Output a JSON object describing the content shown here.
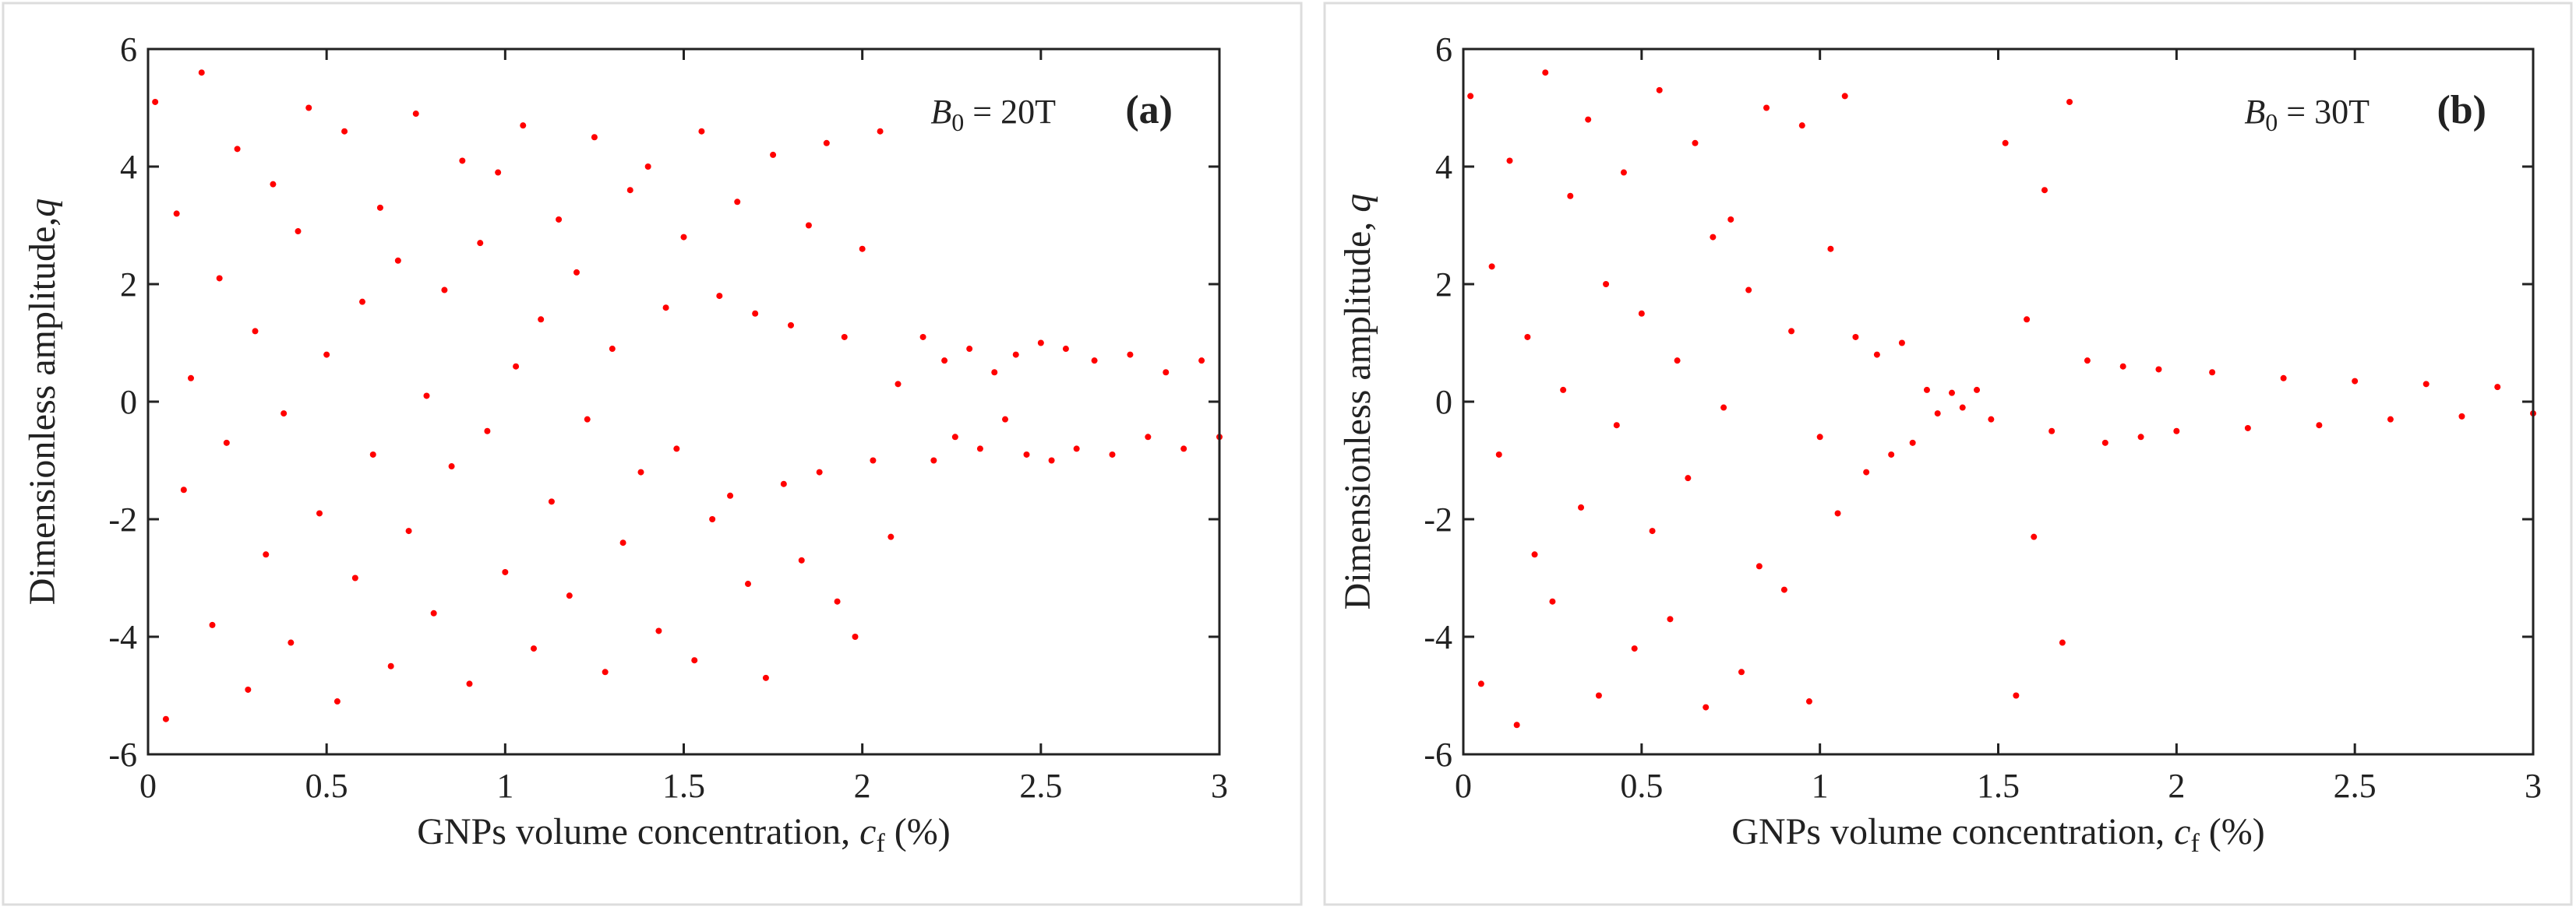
{
  "chart_data": [
    {
      "type": "scatter",
      "color": "#ff0000",
      "xlabel": [
        "GNPs volume concentration, ",
        "c",
        "f",
        " (%)"
      ],
      "ylabel": [
        "Dimensionless amplitude,",
        "q"
      ],
      "annotation": [
        "B",
        "0",
        " = 20T"
      ],
      "panel_label": "(a)",
      "xlim": [
        0,
        3
      ],
      "ylim": [
        -6,
        6
      ],
      "xticks": [
        0,
        0.5,
        1,
        1.5,
        2,
        2.5,
        3
      ],
      "yticks": [
        -6,
        -4,
        -2,
        0,
        2,
        4,
        6
      ],
      "x": [
        0.02,
        0.05,
        0.08,
        0.1,
        0.12,
        0.15,
        0.18,
        0.2,
        0.22,
        0.25,
        0.28,
        0.3,
        0.33,
        0.35,
        0.38,
        0.4,
        0.42,
        0.45,
        0.48,
        0.5,
        0.53,
        0.55,
        0.58,
        0.6,
        0.63,
        0.65,
        0.68,
        0.7,
        0.73,
        0.75,
        0.78,
        0.8,
        0.83,
        0.85,
        0.88,
        0.9,
        0.93,
        0.95,
        0.98,
        1.0,
        1.03,
        1.05,
        1.08,
        1.1,
        1.13,
        1.15,
        1.18,
        1.2,
        1.23,
        1.25,
        1.28,
        1.3,
        1.33,
        1.35,
        1.38,
        1.4,
        1.43,
        1.45,
        1.48,
        1.5,
        1.53,
        1.55,
        1.58,
        1.6,
        1.63,
        1.65,
        1.68,
        1.7,
        1.73,
        1.75,
        1.78,
        1.8,
        1.83,
        1.85,
        1.88,
        1.9,
        1.93,
        1.95,
        1.98,
        2.0,
        2.03,
        2.05,
        2.08,
        2.1,
        2.17,
        2.2,
        2.23,
        2.26,
        2.3,
        2.33,
        2.37,
        2.4,
        2.43,
        2.46,
        2.5,
        2.53,
        2.57,
        2.6,
        2.65,
        2.7,
        2.75,
        2.8,
        2.85,
        2.9,
        2.95,
        3.0
      ],
      "values": [
        5.1,
        -5.4,
        3.2,
        -1.5,
        0.4,
        5.6,
        -3.8,
        2.1,
        -0.7,
        4.3,
        -4.9,
        1.2,
        -2.6,
        3.7,
        -0.2,
        -4.1,
        2.9,
        5.0,
        -1.9,
        0.8,
        -5.1,
        4.6,
        -3.0,
        1.7,
        -0.9,
        3.3,
        -4.5,
        2.4,
        -2.2,
        4.9,
        0.1,
        -3.6,
        1.9,
        -1.1,
        4.1,
        -4.8,
        2.7,
        -0.5,
        3.9,
        -2.9,
        0.6,
        4.7,
        -4.2,
        1.4,
        -1.7,
        3.1,
        -3.3,
        2.2,
        -0.3,
        4.5,
        -4.6,
        0.9,
        -2.4,
        3.6,
        -1.2,
        4.0,
        -3.9,
        1.6,
        -0.8,
        2.8,
        -4.4,
        4.6,
        -2.0,
        1.8,
        -1.6,
        3.4,
        -3.1,
        1.5,
        -4.7,
        4.2,
        -1.4,
        1.3,
        -2.7,
        3.0,
        -1.2,
        4.4,
        -3.4,
        1.1,
        -4.0,
        2.6,
        -1.0,
        4.6,
        -2.3,
        0.3,
        1.1,
        -1.0,
        0.7,
        -0.6,
        0.9,
        -0.8,
        0.5,
        -0.3,
        0.8,
        -0.9,
        1.0,
        -1.0,
        0.9,
        -0.8,
        0.7,
        -0.9,
        0.8,
        -0.6,
        0.5,
        -0.8,
        0.7,
        -0.6
      ]
    },
    {
      "type": "scatter",
      "color": "#ff0000",
      "xlabel": [
        "GNPs volume concentration, ",
        "c",
        "f",
        " (%)"
      ],
      "ylabel": [
        "Dimensionless amplitude, ",
        "q"
      ],
      "annotation": [
        "B",
        "0",
        " = 30T"
      ],
      "panel_label": "(b)",
      "xlim": [
        0,
        3
      ],
      "ylim": [
        -6,
        6
      ],
      "xticks": [
        0,
        0.5,
        1,
        1.5,
        2,
        2.5,
        3
      ],
      "yticks": [
        -6,
        -4,
        -2,
        0,
        2,
        4,
        6
      ],
      "x": [
        0.02,
        0.05,
        0.08,
        0.1,
        0.13,
        0.15,
        0.18,
        0.2,
        0.23,
        0.25,
        0.28,
        0.3,
        0.33,
        0.35,
        0.38,
        0.4,
        0.43,
        0.45,
        0.48,
        0.5,
        0.53,
        0.55,
        0.58,
        0.6,
        0.63,
        0.65,
        0.68,
        0.7,
        0.73,
        0.75,
        0.78,
        0.8,
        0.83,
        0.85,
        0.9,
        0.92,
        0.95,
        0.97,
        1.0,
        1.03,
        1.05,
        1.07,
        1.1,
        1.13,
        1.16,
        1.2,
        1.23,
        1.26,
        1.3,
        1.33,
        1.37,
        1.4,
        1.44,
        1.48,
        1.52,
        1.55,
        1.58,
        1.6,
        1.63,
        1.65,
        1.68,
        1.7,
        1.75,
        1.8,
        1.85,
        1.9,
        1.95,
        2.0,
        2.1,
        2.2,
        2.3,
        2.4,
        2.5,
        2.6,
        2.7,
        2.8,
        2.9,
        3.0
      ],
      "values": [
        5.2,
        -4.8,
        2.3,
        -0.9,
        4.1,
        -5.5,
        1.1,
        -2.6,
        5.6,
        -3.4,
        0.2,
        3.5,
        -1.8,
        4.8,
        -5.0,
        2.0,
        -0.4,
        3.9,
        -4.2,
        1.5,
        -2.2,
        5.3,
        -3.7,
        0.7,
        -1.3,
        4.4,
        -5.2,
        2.8,
        -0.1,
        3.1,
        -4.6,
        1.9,
        -2.8,
        5.0,
        -3.2,
        1.2,
        4.7,
        -5.1,
        -0.6,
        2.6,
        -1.9,
        5.2,
        1.1,
        -1.2,
        0.8,
        -0.9,
        1.0,
        -0.7,
        0.2,
        -0.2,
        0.15,
        -0.1,
        0.2,
        -0.3,
        4.4,
        -5.0,
        1.4,
        -2.3,
        3.6,
        -0.5,
        -4.1,
        5.1,
        0.7,
        -0.7,
        0.6,
        -0.6,
        0.55,
        -0.5,
        0.5,
        -0.45,
        0.4,
        -0.4,
        0.35,
        -0.3,
        0.3,
        -0.25,
        0.25,
        -0.2
      ]
    }
  ]
}
